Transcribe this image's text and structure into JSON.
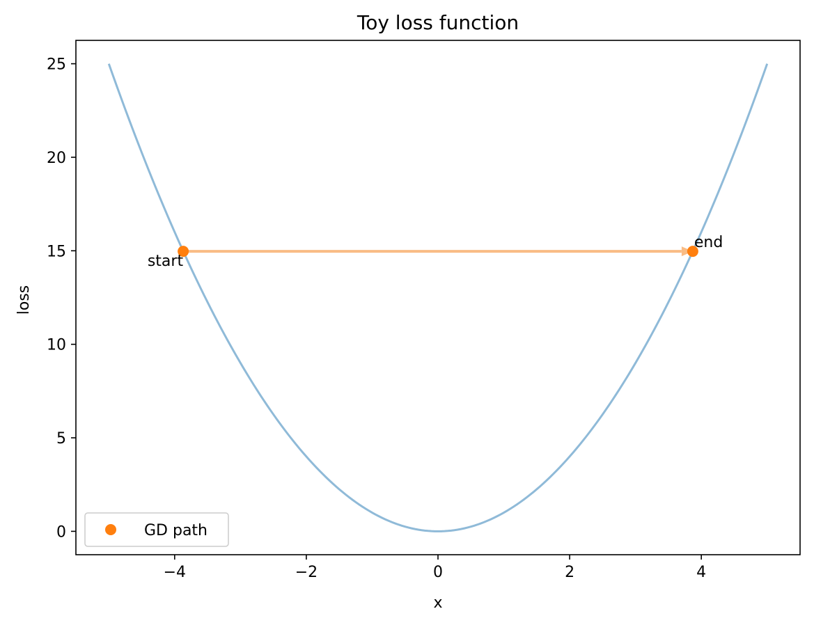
{
  "chart_data": {
    "type": "line",
    "title": "Toy loss function",
    "xlabel": "x",
    "ylabel": "loss",
    "xlim": [
      -5.5,
      5.5
    ],
    "ylim": [
      -1.25,
      26.25
    ],
    "xticks": [
      -4,
      -2,
      0,
      2,
      4
    ],
    "xtick_labels": [
      "−4",
      "−2",
      "0",
      "2",
      "4"
    ],
    "yticks": [
      0,
      5,
      10,
      15,
      20,
      25
    ],
    "ytick_labels": [
      "0",
      "5",
      "10",
      "15",
      "20",
      "25"
    ],
    "grid": false,
    "curve": {
      "function": "x^2",
      "x_range": [
        -5,
        5
      ],
      "color": "#8fbad8"
    },
    "series": [
      {
        "name": "GD path",
        "type": "scatter",
        "color": "#ff7f0e",
        "x": [
          -3.87,
          3.87
        ],
        "y": [
          14.97,
          14.97
        ]
      }
    ],
    "arrow": {
      "from": [
        -3.87,
        14.97
      ],
      "to": [
        3.87,
        14.97
      ],
      "color": "#f9bc85"
    },
    "annotations": [
      {
        "text": "start",
        "x": -3.87,
        "y": 14.97,
        "position": "below-left"
      },
      {
        "text": "end",
        "x": 3.87,
        "y": 14.97,
        "position": "above-right"
      }
    ],
    "legend": {
      "placement": "lower-left",
      "entries": [
        {
          "label": "GD path",
          "color": "#ff7f0e",
          "marker": "circle"
        }
      ]
    }
  }
}
